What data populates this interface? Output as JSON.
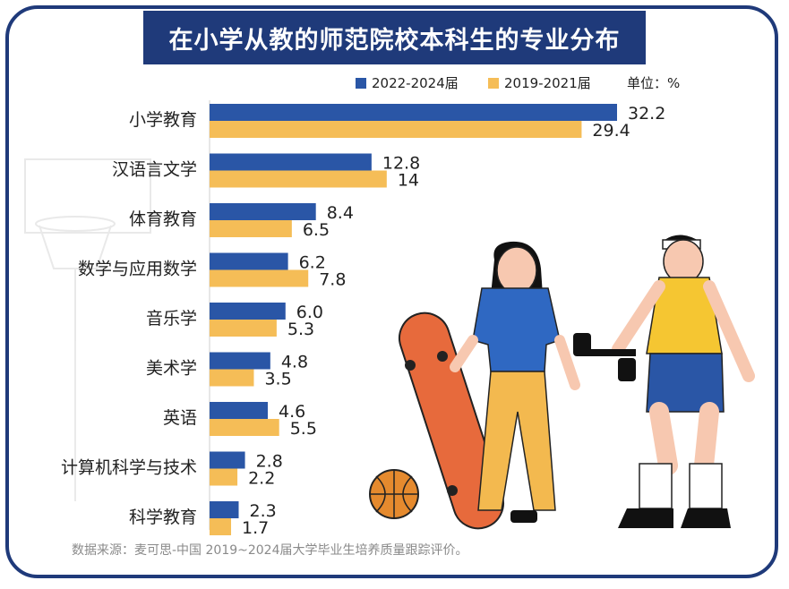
{
  "title": "在小学从教的师范院校本科生的专业分布",
  "unit_label": "单位：%",
  "source": "数据来源：麦可思-中国 2019~2024届大学毕业生培养质量跟踪评价。",
  "colors": {
    "frame": "#1f3a7a",
    "series1": "#2a56a6",
    "series2": "#f5bd57",
    "text": "#222222"
  },
  "chart_data": {
    "type": "bar",
    "orientation": "horizontal",
    "categories": [
      "小学教育",
      "汉语言文学",
      "体育教育",
      "数学与应用数学",
      "音乐学",
      "美术学",
      "英语",
      "计算机科学与技术",
      "科学教育"
    ],
    "series": [
      {
        "name": "2022-2024届",
        "values": [
          32.2,
          12.8,
          8.4,
          6.2,
          6.0,
          4.8,
          4.6,
          2.8,
          2.3
        ],
        "labels": [
          "32.2",
          "12.8",
          "8.4",
          "6.2",
          "6.0",
          "4.8",
          "4.6",
          "2.8",
          "2.3"
        ]
      },
      {
        "name": "2019-2021届",
        "values": [
          29.4,
          14,
          6.5,
          7.8,
          5.3,
          3.5,
          5.5,
          2.2,
          1.7
        ],
        "labels": [
          "29.4",
          "14",
          "6.5",
          "7.8",
          "5.3",
          "3.5",
          "5.5",
          "2.2",
          "1.7"
        ]
      }
    ],
    "xlim": [
      0,
      35
    ],
    "legend": "top-right",
    "grid": false
  }
}
